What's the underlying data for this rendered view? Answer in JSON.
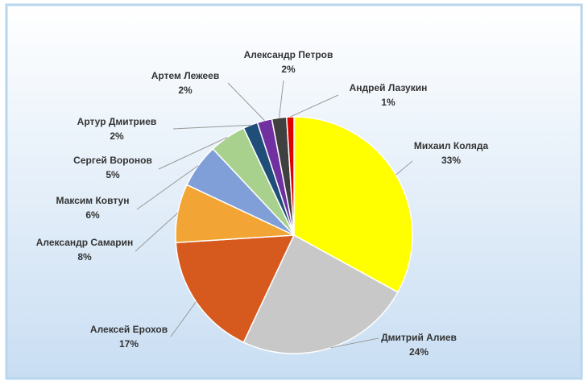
{
  "chart_data": {
    "type": "pie",
    "categories": [
      "Михаил Коляда",
      "Дмитрий Алиев",
      "Алексей Ерохов",
      "Александр Самарин",
      "Максим Ковтун",
      "Сергей Воронов",
      "Артур Дмитриев",
      "Артем Лежеев",
      "Александр Петров",
      "Андрей Лазукин"
    ],
    "values": [
      33,
      24,
      17,
      8,
      6,
      5,
      2,
      2,
      2,
      1
    ],
    "value_labels": [
      "33%",
      "24%",
      "17%",
      "8%",
      "6%",
      "5%",
      "2%",
      "2%",
      "2%",
      "1%"
    ],
    "colors": [
      "#ffff00",
      "#c8c8c8",
      "#d65a1e",
      "#f2a534",
      "#809fd8",
      "#a9d18e",
      "#1f4e79",
      "#7030a0",
      "#404040",
      "#e00000"
    ]
  }
}
